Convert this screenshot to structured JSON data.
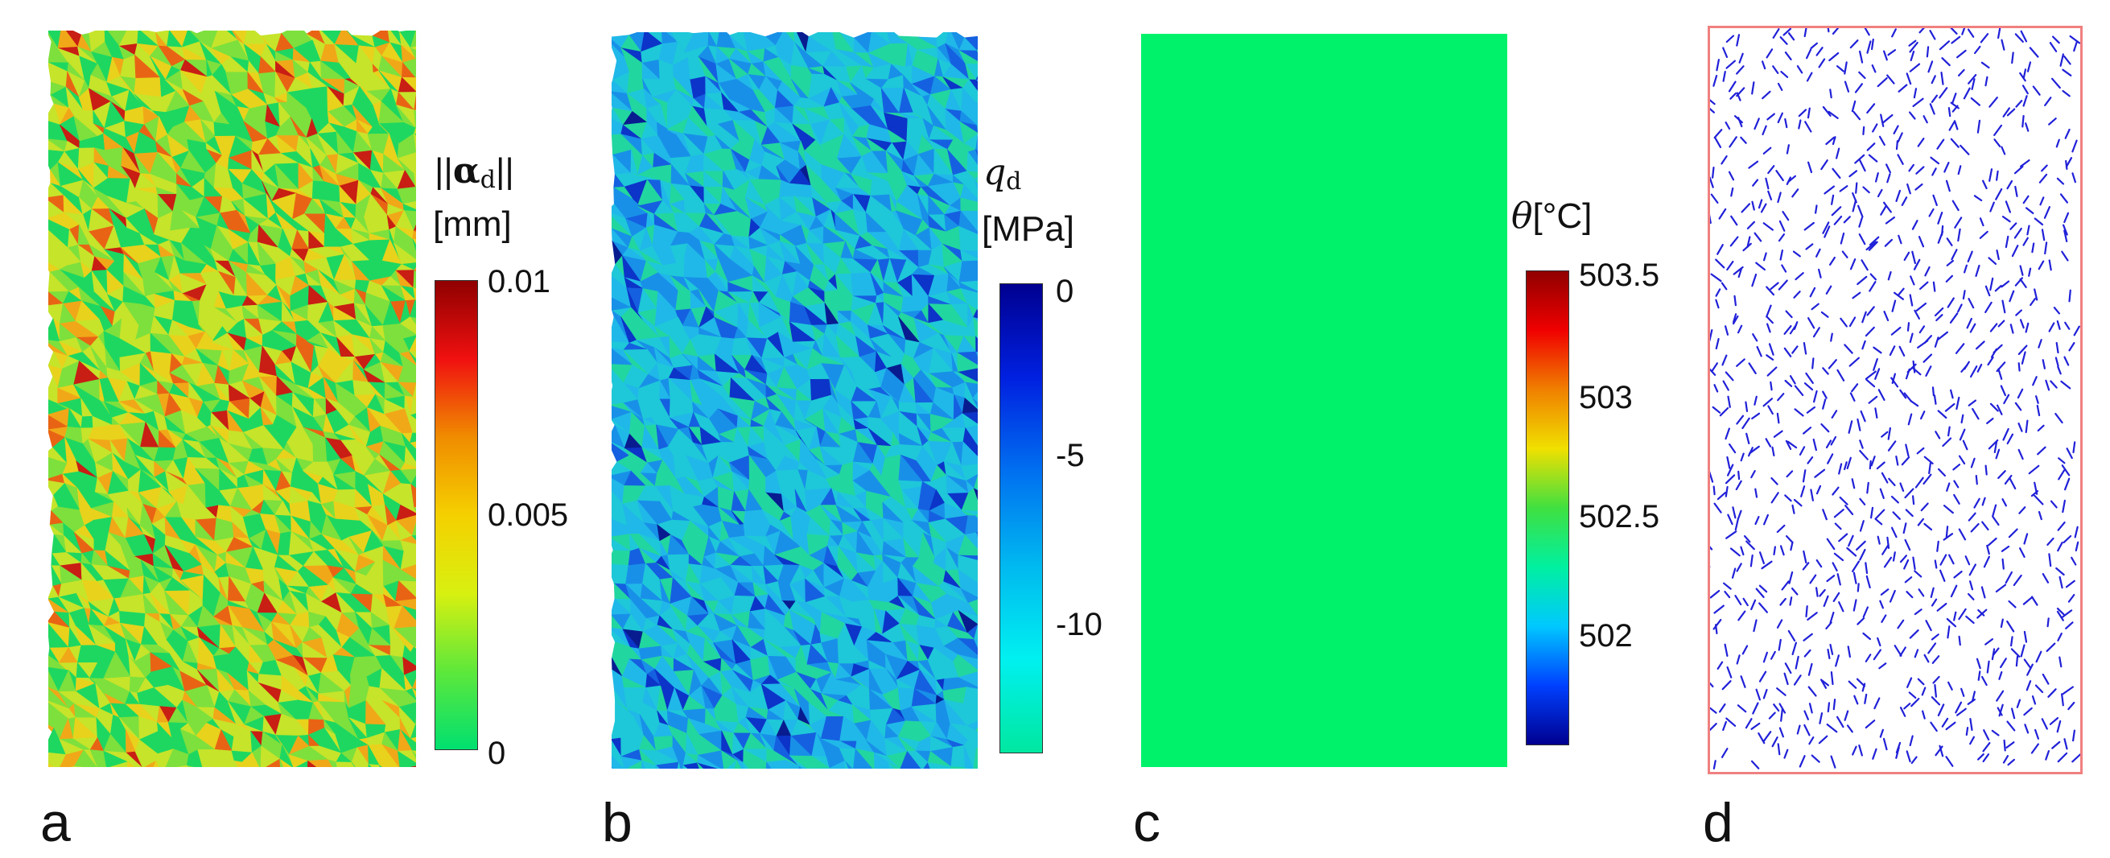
{
  "panels": [
    {
      "label": "a",
      "colorbar": {
        "title_symbol": "α",
        "title_sub": "d",
        "unit": "[mm]",
        "ticks": [
          "0.01",
          "0.005",
          "0"
        ],
        "range": [
          0,
          0.01
        ],
        "colors": [
          "#00e070",
          "#5ee83a",
          "#d8f010",
          "#f5d000",
          "#f08c00",
          "#f01010",
          "#900000"
        ]
      },
      "field_colors": [
        "#1ed760",
        "#7ee03c",
        "#c6e42a",
        "#e8d21c",
        "#f0a818",
        "#e86414",
        "#c81e14"
      ]
    },
    {
      "label": "b",
      "colorbar": {
        "title_symbol": "q",
        "title_sub": "d",
        "unit": "[MPa]",
        "ticks": [
          "0",
          "-5",
          "-10"
        ],
        "range": [
          -14,
          0
        ],
        "colors": [
          "#00e8a0",
          "#00f0f0",
          "#00b8f0",
          "#0070f0",
          "#0020e0",
          "#000090"
        ]
      },
      "field_colors": [
        "#22d6a0",
        "#1ec8d8",
        "#20b8e8",
        "#1890e8",
        "#1560e0",
        "#0c34c8",
        "#081c90"
      ]
    },
    {
      "label": "c",
      "colorbar": {
        "title_symbol": "θ",
        "unit": "[°C]",
        "ticks": [
          "503.5",
          "503",
          "502.5",
          "502"
        ],
        "range": [
          501.8,
          503.5
        ],
        "colors": [
          "#000090",
          "#0040ff",
          "#00c8ff",
          "#00f0a0",
          "#40e040",
          "#f0e000",
          "#f08000",
          "#f00000",
          "#900000"
        ]
      },
      "fill_color": "#00f26a"
    },
    {
      "label": "d",
      "border_color": "#f08080",
      "mark_color": "#2020d8"
    }
  ]
}
